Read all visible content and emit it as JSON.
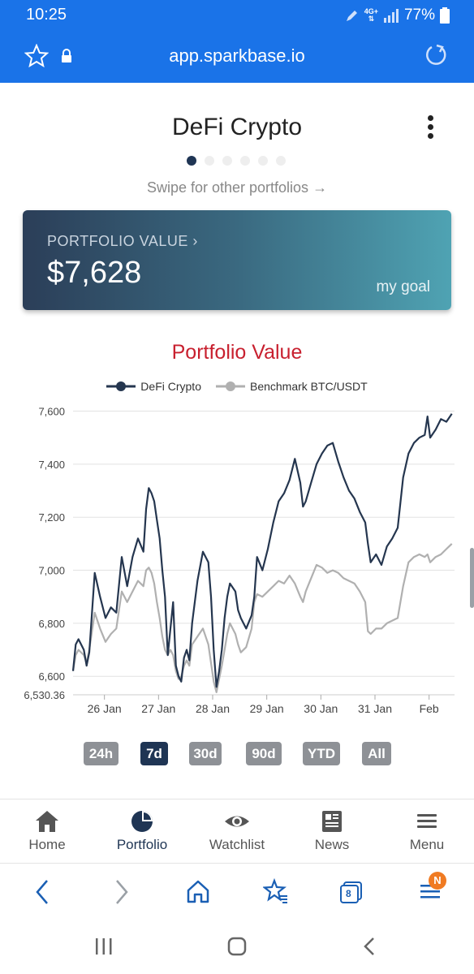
{
  "status_bar": {
    "time": "10:25",
    "network": "4G+",
    "battery": "77%"
  },
  "browser": {
    "url": "app.sparkbase.io",
    "tab_count": "8",
    "menu_badge": "N"
  },
  "portfolio": {
    "name": "DeFi Crypto",
    "swipe_hint": "Swipe for other portfolios",
    "value_label": "PORTFOLIO VALUE",
    "value": "$7,628",
    "goal_label": "my goal",
    "page_count": 6,
    "active_page": 1
  },
  "range_buttons": [
    "24h",
    "7d",
    "30d",
    "90d",
    "YTD",
    "All"
  ],
  "active_range": "7d",
  "app_nav": {
    "items": [
      {
        "label": "Home",
        "icon": "home-icon"
      },
      {
        "label": "Portfolio",
        "icon": "pie-chart-icon"
      },
      {
        "label": "Watchlist",
        "icon": "eye-icon"
      },
      {
        "label": "News",
        "icon": "newspaper-icon"
      },
      {
        "label": "Menu",
        "icon": "hamburger-icon"
      }
    ],
    "active": "Portfolio"
  },
  "colors": {
    "accent_blue": "#1a73e8",
    "navy": "#1f3554",
    "benchmark_gray": "#b0b0b0",
    "chart_title_red": "#c8202f"
  },
  "chart_data": {
    "type": "line",
    "title": "Portfolio Value",
    "xlabel": "",
    "ylabel": "",
    "x_ticks": [
      "26 Jan",
      "27 Jan",
      "28 Jan",
      "29 Jan",
      "30 Jan",
      "31 Jan",
      "Feb"
    ],
    "y_ticks": [
      "7,600",
      "7,400",
      "7,200",
      "7,000",
      "6,800",
      "6,600",
      "6,530.36"
    ],
    "ylim": [
      6530.36,
      7620
    ],
    "xlim": [
      0,
      7.05
    ],
    "grid": true,
    "legend_position": "top",
    "series": [
      {
        "name": "DeFi Crypto",
        "color": "#25364f",
        "points": [
          [
            0.0,
            6620
          ],
          [
            0.05,
            6720
          ],
          [
            0.1,
            6740
          ],
          [
            0.2,
            6700
          ],
          [
            0.25,
            6640
          ],
          [
            0.3,
            6690
          ],
          [
            0.4,
            6990
          ],
          [
            0.5,
            6900
          ],
          [
            0.6,
            6820
          ],
          [
            0.7,
            6860
          ],
          [
            0.8,
            6840
          ],
          [
            0.9,
            7050
          ],
          [
            1.0,
            6940
          ],
          [
            1.1,
            7050
          ],
          [
            1.2,
            7120
          ],
          [
            1.3,
            7070
          ],
          [
            1.35,
            7230
          ],
          [
            1.4,
            7310
          ],
          [
            1.45,
            7290
          ],
          [
            1.5,
            7260
          ],
          [
            1.55,
            7190
          ],
          [
            1.6,
            7120
          ],
          [
            1.65,
            7000
          ],
          [
            1.7,
            6900
          ],
          [
            1.75,
            6680
          ],
          [
            1.8,
            6780
          ],
          [
            1.85,
            6880
          ],
          [
            1.9,
            6640
          ],
          [
            1.95,
            6600
          ],
          [
            2.0,
            6580
          ],
          [
            2.05,
            6670
          ],
          [
            2.1,
            6700
          ],
          [
            2.15,
            6660
          ],
          [
            2.2,
            6800
          ],
          [
            2.3,
            6960
          ],
          [
            2.4,
            7070
          ],
          [
            2.5,
            7030
          ],
          [
            2.55,
            6900
          ],
          [
            2.6,
            6700
          ],
          [
            2.65,
            6560
          ],
          [
            2.7,
            6620
          ],
          [
            2.75,
            6700
          ],
          [
            2.8,
            6820
          ],
          [
            2.85,
            6900
          ],
          [
            2.9,
            6950
          ],
          [
            3.0,
            6920
          ],
          [
            3.05,
            6850
          ],
          [
            3.1,
            6820
          ],
          [
            3.2,
            6780
          ],
          [
            3.3,
            6830
          ],
          [
            3.35,
            6900
          ],
          [
            3.4,
            7050
          ],
          [
            3.5,
            7000
          ],
          [
            3.6,
            7080
          ],
          [
            3.7,
            7180
          ],
          [
            3.8,
            7260
          ],
          [
            3.9,
            7290
          ],
          [
            4.0,
            7340
          ],
          [
            4.1,
            7420
          ],
          [
            4.2,
            7330
          ],
          [
            4.25,
            7240
          ],
          [
            4.3,
            7260
          ],
          [
            4.4,
            7330
          ],
          [
            4.5,
            7400
          ],
          [
            4.6,
            7440
          ],
          [
            4.7,
            7470
          ],
          [
            4.8,
            7480
          ],
          [
            4.9,
            7410
          ],
          [
            5.0,
            7350
          ],
          [
            5.1,
            7300
          ],
          [
            5.2,
            7270
          ],
          [
            5.3,
            7220
          ],
          [
            5.4,
            7180
          ],
          [
            5.45,
            7100
          ],
          [
            5.5,
            7030
          ],
          [
            5.6,
            7060
          ],
          [
            5.7,
            7020
          ],
          [
            5.8,
            7090
          ],
          [
            5.9,
            7120
          ],
          [
            6.0,
            7160
          ],
          [
            6.1,
            7350
          ],
          [
            6.2,
            7440
          ],
          [
            6.3,
            7480
          ],
          [
            6.4,
            7500
          ],
          [
            6.5,
            7510
          ],
          [
            6.55,
            7580
          ],
          [
            6.6,
            7500
          ],
          [
            6.7,
            7530
          ],
          [
            6.8,
            7570
          ],
          [
            6.9,
            7560
          ],
          [
            7.0,
            7590
          ]
        ]
      },
      {
        "name": "Benchmark BTC/USDT",
        "color": "#b0b0b0",
        "points": [
          [
            0.0,
            6620
          ],
          [
            0.05,
            6680
          ],
          [
            0.1,
            6700
          ],
          [
            0.2,
            6680
          ],
          [
            0.25,
            6650
          ],
          [
            0.3,
            6700
          ],
          [
            0.4,
            6840
          ],
          [
            0.5,
            6780
          ],
          [
            0.6,
            6730
          ],
          [
            0.7,
            6760
          ],
          [
            0.8,
            6780
          ],
          [
            0.9,
            6920
          ],
          [
            1.0,
            6880
          ],
          [
            1.1,
            6920
          ],
          [
            1.2,
            6960
          ],
          [
            1.3,
            6940
          ],
          [
            1.35,
            7000
          ],
          [
            1.4,
            7010
          ],
          [
            1.45,
            6990
          ],
          [
            1.5,
            6950
          ],
          [
            1.55,
            6880
          ],
          [
            1.6,
            6820
          ],
          [
            1.65,
            6750
          ],
          [
            1.7,
            6700
          ],
          [
            1.75,
            6680
          ],
          [
            1.8,
            6700
          ],
          [
            1.85,
            6680
          ],
          [
            1.9,
            6620
          ],
          [
            1.95,
            6590
          ],
          [
            2.0,
            6600
          ],
          [
            2.05,
            6640
          ],
          [
            2.1,
            6660
          ],
          [
            2.15,
            6640
          ],
          [
            2.2,
            6720
          ],
          [
            2.3,
            6750
          ],
          [
            2.4,
            6780
          ],
          [
            2.5,
            6720
          ],
          [
            2.55,
            6650
          ],
          [
            2.6,
            6580
          ],
          [
            2.65,
            6540
          ],
          [
            2.7,
            6590
          ],
          [
            2.75,
            6640
          ],
          [
            2.8,
            6700
          ],
          [
            2.85,
            6760
          ],
          [
            2.9,
            6800
          ],
          [
            3.0,
            6760
          ],
          [
            3.05,
            6720
          ],
          [
            3.1,
            6690
          ],
          [
            3.2,
            6710
          ],
          [
            3.3,
            6780
          ],
          [
            3.35,
            6880
          ],
          [
            3.4,
            6910
          ],
          [
            3.5,
            6900
          ],
          [
            3.6,
            6920
          ],
          [
            3.7,
            6940
          ],
          [
            3.8,
            6960
          ],
          [
            3.9,
            6950
          ],
          [
            4.0,
            6980
          ],
          [
            4.1,
            6950
          ],
          [
            4.2,
            6900
          ],
          [
            4.25,
            6880
          ],
          [
            4.3,
            6920
          ],
          [
            4.4,
            6970
          ],
          [
            4.5,
            7020
          ],
          [
            4.6,
            7010
          ],
          [
            4.7,
            6990
          ],
          [
            4.8,
            7000
          ],
          [
            4.9,
            6990
          ],
          [
            5.0,
            6970
          ],
          [
            5.1,
            6960
          ],
          [
            5.2,
            6950
          ],
          [
            5.3,
            6920
          ],
          [
            5.4,
            6880
          ],
          [
            5.45,
            6770
          ],
          [
            5.5,
            6760
          ],
          [
            5.6,
            6780
          ],
          [
            5.7,
            6780
          ],
          [
            5.8,
            6800
          ],
          [
            5.9,
            6810
          ],
          [
            6.0,
            6820
          ],
          [
            6.1,
            6940
          ],
          [
            6.2,
            7030
          ],
          [
            6.3,
            7050
          ],
          [
            6.4,
            7060
          ],
          [
            6.5,
            7050
          ],
          [
            6.55,
            7060
          ],
          [
            6.6,
            7030
          ],
          [
            6.7,
            7050
          ],
          [
            6.8,
            7060
          ],
          [
            6.9,
            7080
          ],
          [
            7.0,
            7100
          ]
        ]
      }
    ]
  }
}
